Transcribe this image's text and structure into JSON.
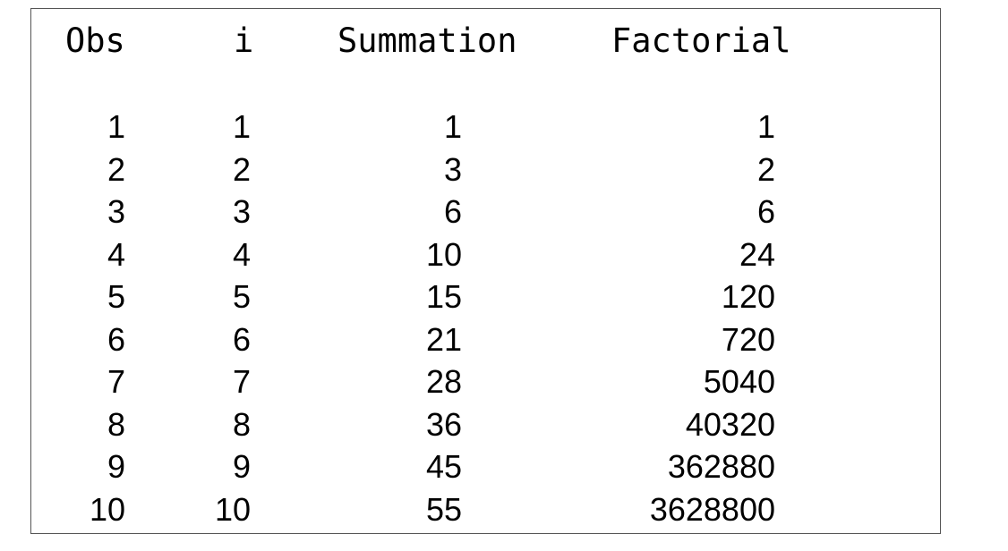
{
  "table": {
    "headers": {
      "obs": "Obs",
      "i": "i",
      "summation": "Summation",
      "factorial": "Factorial"
    },
    "rows": [
      {
        "obs": "1",
        "i": "1",
        "summation": "1",
        "factorial": "1"
      },
      {
        "obs": "2",
        "i": "2",
        "summation": "3",
        "factorial": "2"
      },
      {
        "obs": "3",
        "i": "3",
        "summation": "6",
        "factorial": "6"
      },
      {
        "obs": "4",
        "i": "4",
        "summation": "10",
        "factorial": "24"
      },
      {
        "obs": "5",
        "i": "5",
        "summation": "15",
        "factorial": "120"
      },
      {
        "obs": "6",
        "i": "6",
        "summation": "21",
        "factorial": "720"
      },
      {
        "obs": "7",
        "i": "7",
        "summation": "28",
        "factorial": "5040"
      },
      {
        "obs": "8",
        "i": "8",
        "summation": "36",
        "factorial": "40320"
      },
      {
        "obs": "9",
        "i": "9",
        "summation": "45",
        "factorial": "362880"
      },
      {
        "obs": "10",
        "i": "10",
        "summation": "55",
        "factorial": "3628800"
      }
    ]
  }
}
